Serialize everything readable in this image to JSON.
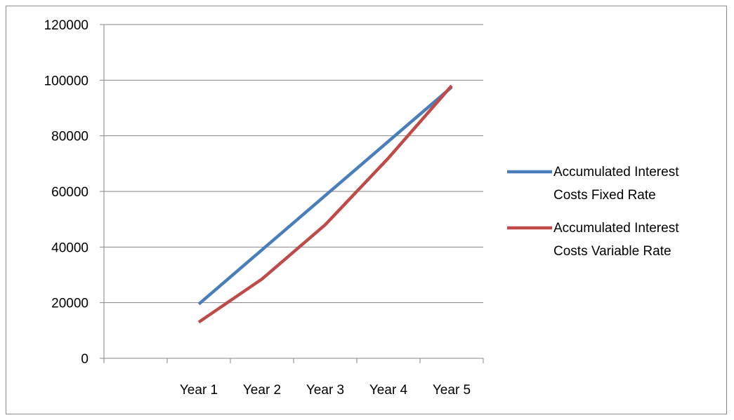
{
  "chart_data": {
    "type": "line",
    "categories": [
      "",
      "Year 1",
      "Year 2",
      "Year 3",
      "Year 4",
      "Year 5"
    ],
    "series": [
      {
        "name_lines": [
          "Accumulated Interest",
          "Costs Fixed Rate"
        ],
        "color": "#4a7ebb",
        "values": [
          null,
          19500,
          39000,
          58500,
          78000,
          97500
        ]
      },
      {
        "name_lines": [
          "Accumulated Interest",
          "Costs Variable Rate"
        ],
        "color": "#be4b48",
        "values": [
          null,
          13000,
          28500,
          48000,
          72000,
          98000
        ]
      }
    ],
    "yticks": [
      "0",
      "20000",
      "40000",
      "60000",
      "80000",
      "100000",
      "120000"
    ],
    "ylim": [
      0,
      120000
    ],
    "grid": true,
    "legend_position": "right"
  }
}
